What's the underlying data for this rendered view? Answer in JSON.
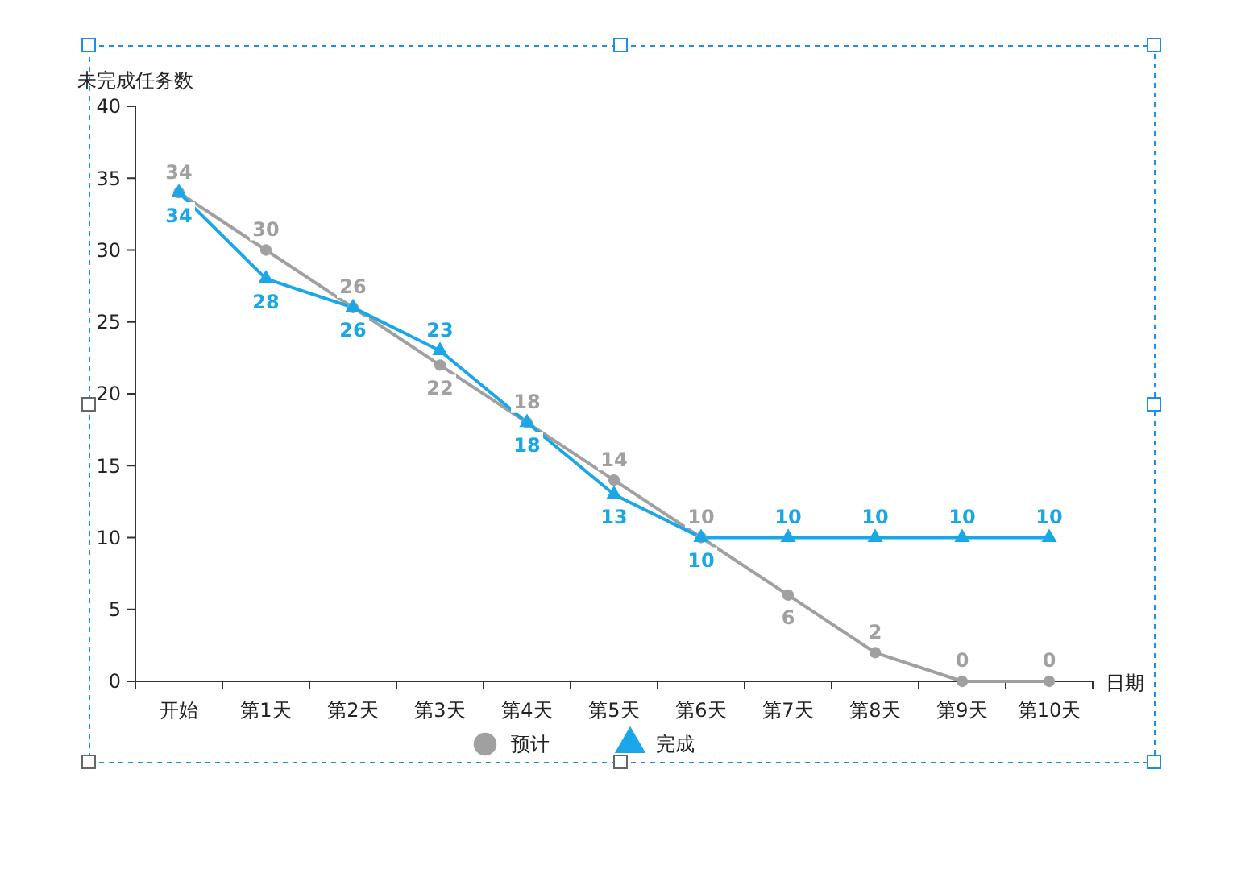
{
  "chart_data": {
    "type": "line",
    "xlabel": "日期",
    "ylabel": "未完成任务数",
    "categories": [
      "开始",
      "第1天",
      "第2天",
      "第3天",
      "第4天",
      "第5天",
      "第6天",
      "第7天",
      "第8天",
      "第9天",
      "第10天"
    ],
    "series": [
      {
        "name": "预计",
        "color": "#a0a0a0",
        "marker": "circle",
        "values": [
          34,
          30,
          26,
          22,
          18,
          14,
          10,
          6,
          2,
          0,
          0
        ]
      },
      {
        "name": "完成",
        "color": "#1aa7e8",
        "marker": "triangle",
        "values": [
          34,
          28,
          26,
          23,
          18,
          13,
          10,
          10,
          10,
          10,
          10
        ]
      }
    ],
    "ylim": [
      0,
      40
    ],
    "yticks": [
      0,
      5,
      10,
      15,
      20,
      25,
      30,
      35,
      40
    ],
    "grid": false,
    "legend": "bottom",
    "data_labels": true,
    "line_style": "solid"
  }
}
